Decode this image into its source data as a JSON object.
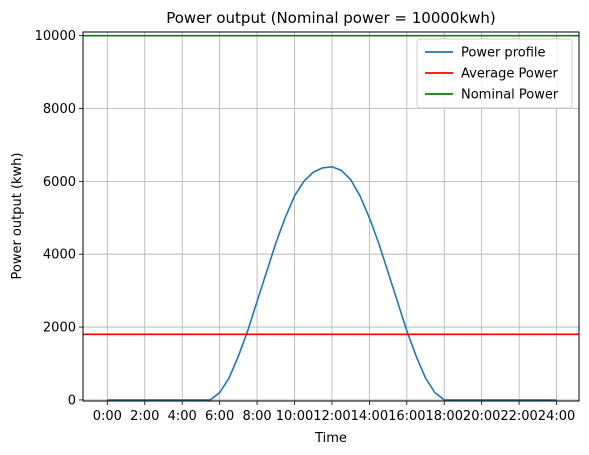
{
  "chart_data": {
    "type": "line",
    "title": "Power output (Nominal power = 10000kwh)",
    "xlabel": "Time",
    "ylabel": "Power output (kwh)",
    "x_unit": "hours",
    "xlim": [
      -1.3,
      25.2
    ],
    "ylim": [
      -30,
      10100
    ],
    "x_ticks": [
      0,
      2,
      4,
      6,
      8,
      10,
      12,
      14,
      16,
      18,
      20,
      22,
      24
    ],
    "x_tick_labels": [
      "0:00",
      "2:00",
      "4:00",
      "6:00",
      "8:00",
      "10:00",
      "12:00",
      "14:00",
      "16:00",
      "18:00",
      "20:00",
      "22:00",
      "24:00"
    ],
    "y_ticks": [
      0,
      2000,
      4000,
      6000,
      8000,
      10000
    ],
    "y_tick_labels": [
      "0",
      "2000",
      "4000",
      "6000",
      "8000",
      "10000"
    ],
    "grid": true,
    "legend_position": "top-right",
    "series": [
      {
        "name": "Power profile",
        "color": "#1f77b4",
        "x": [
          0,
          1,
          2,
          3,
          4,
          5,
          5.5,
          6,
          6.5,
          7,
          7.5,
          8,
          8.5,
          9,
          9.5,
          10,
          10.5,
          11,
          11.5,
          12,
          12.5,
          13,
          13.5,
          14,
          14.5,
          15,
          15.5,
          16,
          16.5,
          17,
          17.5,
          18,
          18.5,
          19,
          20,
          21,
          22,
          23,
          24
        ],
        "values": [
          0,
          0,
          0,
          0,
          0,
          0,
          0,
          200,
          600,
          1200,
          1900,
          2700,
          3500,
          4300,
          5000,
          5600,
          6000,
          6250,
          6370,
          6400,
          6300,
          6050,
          5600,
          5000,
          4300,
          3500,
          2700,
          1900,
          1200,
          600,
          200,
          0,
          0,
          0,
          0,
          0,
          0,
          0,
          0
        ]
      },
      {
        "name": "Average Power",
        "color": "#ff0000",
        "x": [
          -1.3,
          25.2
        ],
        "values": [
          1800,
          1800
        ]
      },
      {
        "name": "Nominal Power",
        "color": "#008000",
        "x": [
          -1.3,
          25.2
        ],
        "values": [
          10000,
          10000
        ]
      }
    ]
  }
}
